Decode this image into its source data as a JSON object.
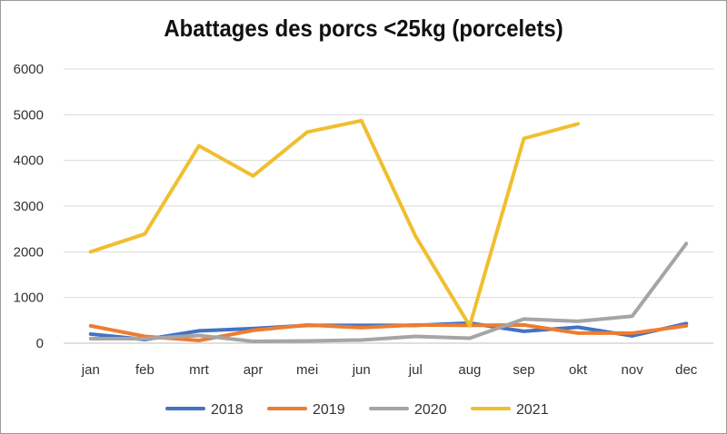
{
  "chart_data": {
    "type": "line",
    "title": "Abattages des porcs <25kg (porcelets)",
    "xlabel": "",
    "ylabel": "",
    "categories": [
      "jan",
      "feb",
      "mrt",
      "apr",
      "mei",
      "jun",
      "jul",
      "aug",
      "sep",
      "okt",
      "nov",
      "dec"
    ],
    "ylim": [
      0,
      6000
    ],
    "yticks": [
      0,
      1000,
      2000,
      3000,
      4000,
      5000,
      6000
    ],
    "grid": true,
    "legend_position": "bottom",
    "series": [
      {
        "name": "2018",
        "color": "#4472c4",
        "values": [
          200,
          80,
          270,
          320,
          390,
          390,
          390,
          440,
          260,
          350,
          160,
          430
        ]
      },
      {
        "name": "2019",
        "color": "#ed7d31",
        "values": [
          380,
          150,
          60,
          280,
          400,
          340,
          400,
          390,
          400,
          220,
          220,
          380
        ]
      },
      {
        "name": "2020",
        "color": "#a5a5a5",
        "values": [
          100,
          100,
          170,
          40,
          50,
          70,
          150,
          110,
          530,
          480,
          590,
          2180
        ]
      },
      {
        "name": "2021",
        "color": "#f0bf2f",
        "values": [
          2000,
          2390,
          4320,
          3660,
          4620,
          4870,
          2340,
          380,
          4480,
          4800,
          null,
          null
        ]
      }
    ]
  }
}
